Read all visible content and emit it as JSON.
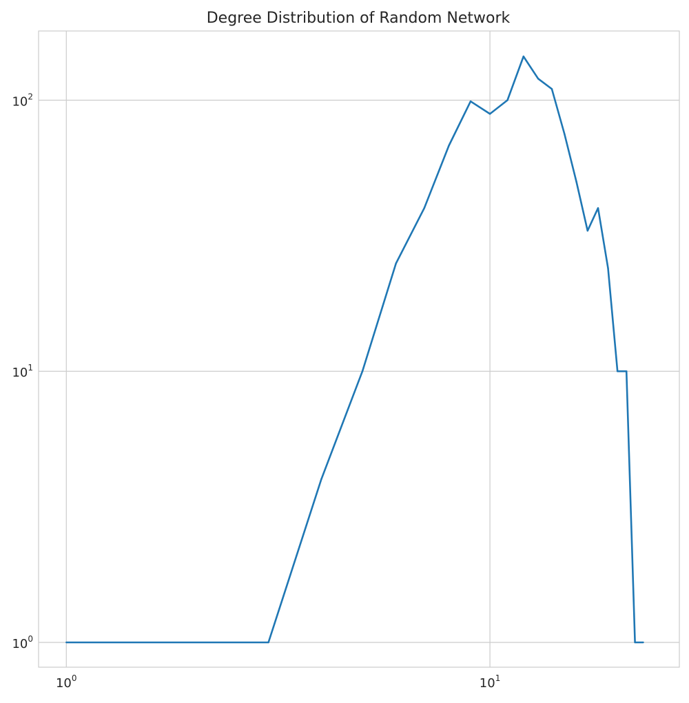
{
  "chart_data": {
    "type": "line",
    "title": "Degree Distribution of Random Network",
    "xlabel": "",
    "ylabel": "",
    "x_scale": "log",
    "y_scale": "log",
    "xlim": [
      0.86,
      28
    ],
    "ylim": [
      0.81,
      180
    ],
    "grid": true,
    "legend": false,
    "line_color": "#1f77b4",
    "x_ticks": [
      {
        "value": 1,
        "base": "10",
        "exp": "0"
      },
      {
        "value": 10,
        "base": "10",
        "exp": "1"
      }
    ],
    "y_ticks": [
      {
        "value": 1,
        "base": "10",
        "exp": "0"
      },
      {
        "value": 10,
        "base": "10",
        "exp": "1"
      },
      {
        "value": 100,
        "base": "10",
        "exp": "2"
      }
    ],
    "series": [
      {
        "x": [
          1,
          3,
          4,
          5,
          6,
          7,
          8,
          9,
          10,
          11,
          12,
          13,
          14,
          15,
          16,
          17,
          18,
          19,
          20,
          21,
          22,
          23
        ],
        "y": [
          1,
          1,
          4,
          10,
          25,
          40,
          68,
          99,
          89,
          100,
          145,
          120,
          110,
          75,
          50,
          33,
          40,
          24,
          10,
          10,
          1,
          1
        ]
      }
    ]
  }
}
